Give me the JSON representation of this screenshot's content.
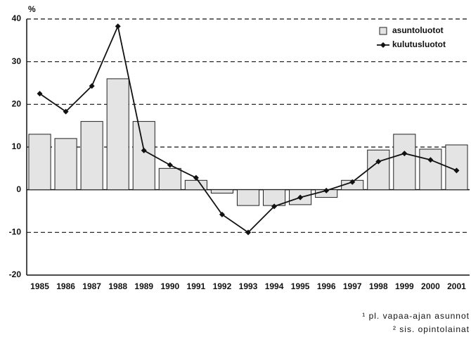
{
  "chart_data": {
    "type": "bar_line",
    "y_label": "%",
    "categories": [
      "1985",
      "1986",
      "1987",
      "1988",
      "1989",
      "1990",
      "1991",
      "1992",
      "1993",
      "1994",
      "1995",
      "1996",
      "1997",
      "1998",
      "1999",
      "2000",
      "2001"
    ],
    "series": [
      {
        "name": "asuntoluotot",
        "type": "bar",
        "color": "#e4e4e4",
        "values": [
          13,
          12,
          16,
          26,
          16,
          5,
          2.2,
          -0.8,
          -3.7,
          -3.7,
          -3.5,
          -1.8,
          2.2,
          9.3,
          13,
          9.5,
          10.5
        ]
      },
      {
        "name": "kulutusluotot",
        "type": "line",
        "color": "#111111",
        "values": [
          22.5,
          18.3,
          24.3,
          38.3,
          9.2,
          5.8,
          2.8,
          -5.8,
          -10,
          -3.9,
          -1.8,
          -0.2,
          1.8,
          6.6,
          8.5,
          7,
          4.5
        ]
      }
    ],
    "ylim": [
      -20,
      40
    ],
    "yticks": [
      -20,
      -10,
      0,
      10,
      20,
      30,
      40
    ],
    "grid": true,
    "legend": "top-right",
    "footnotes": [
      "¹ pl. vapaa-ajan asunnot",
      "² sis. opintolainat"
    ]
  }
}
